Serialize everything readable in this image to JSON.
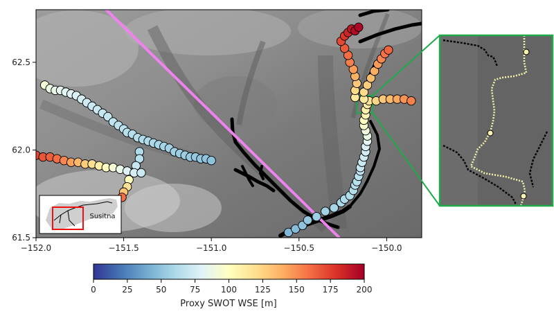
{
  "chart_data": {
    "type": "scatter",
    "title": "",
    "xlabel": "",
    "ylabel": "",
    "xlim": [
      -152.0,
      -149.8
    ],
    "ylim": [
      61.5,
      62.8
    ],
    "x_ticks": [
      -152.0,
      -151.5,
      -151.0,
      -150.5,
      -150.0
    ],
    "x_tick_labels": [
      "−152.0",
      "−151.5",
      "−151.0",
      "−150.5",
      "−150.0"
    ],
    "y_ticks": [
      61.5,
      62.0,
      62.5
    ],
    "y_tick_labels": [
      "61.5",
      "62.0",
      "62.5"
    ],
    "background": "grayscale shaded-relief elevation",
    "colormap": "RdYlBu_r",
    "colorbar": {
      "label": "Proxy SWOT WSE [m]",
      "min": 0,
      "max": 200,
      "ticks": [
        0,
        25,
        50,
        75,
        100,
        125,
        150,
        175,
        200
      ],
      "tick_labels": [
        "0",
        "25",
        "50",
        "75",
        "100",
        "125",
        "150",
        "175",
        "200"
      ],
      "stops": [
        "#313695",
        "#4575b4",
        "#74add1",
        "#abd9e9",
        "#e0f3f8",
        "#ffffbf",
        "#fee090",
        "#fdae61",
        "#f46d43",
        "#d73027",
        "#a50026"
      ]
    },
    "swath_line": {
      "color": "#ee82ee",
      "from": [
        -151.6,
        62.8
      ],
      "to": [
        -150.27,
        61.5
      ]
    },
    "highlight_box": {
      "color": "#1faa4a",
      "lon_range": [
        -150.17,
        -150.08
      ],
      "lat_range": [
        62.21,
        62.31
      ]
    },
    "inset_locator": {
      "label": "Susitna",
      "box_color": "#ee1111"
    },
    "series": [
      {
        "values": [
          [
            -150.56,
            61.53,
            45
          ],
          [
            -150.52,
            61.55,
            47
          ],
          [
            -150.48,
            61.57,
            50
          ],
          [
            -150.45,
            61.6,
            52
          ],
          [
            -150.4,
            61.62,
            55
          ],
          [
            -150.35,
            61.65,
            57
          ],
          [
            -150.3,
            61.67,
            58
          ],
          [
            -150.26,
            61.7,
            60
          ],
          [
            -150.24,
            61.72,
            61
          ],
          [
            -150.21,
            61.74,
            62
          ],
          [
            -150.19,
            61.77,
            63
          ],
          [
            -150.18,
            61.8,
            64
          ],
          [
            -150.17,
            61.82,
            65
          ],
          [
            -150.16,
            61.85,
            66
          ],
          [
            -150.15,
            61.88,
            68
          ],
          [
            -150.15,
            61.9,
            70
          ],
          [
            -150.14,
            61.93,
            72
          ],
          [
            -150.13,
            61.96,
            74
          ],
          [
            -150.12,
            61.99,
            76
          ],
          [
            -150.12,
            62.02,
            78
          ],
          [
            -150.11,
            62.05,
            82
          ],
          [
            -150.11,
            62.08,
            86
          ],
          [
            -150.12,
            62.11,
            90
          ],
          [
            -150.13,
            62.14,
            95
          ],
          [
            -150.13,
            62.17,
            100
          ],
          [
            -150.12,
            62.2,
            105
          ],
          [
            -150.12,
            62.23,
            108
          ],
          [
            -150.11,
            62.26,
            112
          ]
        ]
      },
      {
        "values": [
          [
            -150.1,
            62.28,
            118
          ],
          [
            -150.06,
            62.28,
            124
          ],
          [
            -150.02,
            62.29,
            130
          ],
          [
            -149.98,
            62.29,
            136
          ],
          [
            -149.94,
            62.29,
            142
          ],
          [
            -149.9,
            62.29,
            148
          ],
          [
            -149.86,
            62.28,
            154
          ]
        ]
      },
      {
        "values": [
          [
            -150.13,
            62.29,
            115
          ],
          [
            -150.13,
            62.33,
            122
          ],
          [
            -150.11,
            62.37,
            128
          ],
          [
            -150.09,
            62.41,
            134
          ],
          [
            -150.07,
            62.45,
            140
          ],
          [
            -150.05,
            62.49,
            146
          ],
          [
            -150.03,
            62.52,
            152
          ],
          [
            -150.01,
            62.55,
            158
          ],
          [
            -149.99,
            62.57,
            163
          ]
        ]
      },
      {
        "values": [
          [
            -150.18,
            62.3,
            114
          ],
          [
            -150.18,
            62.34,
            122
          ],
          [
            -150.17,
            62.38,
            130
          ],
          [
            -150.18,
            62.42,
            138
          ],
          [
            -150.19,
            62.46,
            146
          ],
          [
            -150.21,
            62.5,
            154
          ],
          [
            -150.22,
            62.54,
            160
          ],
          [
            -150.24,
            62.58,
            166
          ],
          [
            -150.26,
            62.62,
            172
          ],
          [
            -150.24,
            62.65,
            178
          ],
          [
            -150.22,
            62.67,
            184
          ],
          [
            -150.2,
            62.69,
            190
          ],
          [
            -150.18,
            62.68,
            194
          ],
          [
            -150.16,
            62.7,
            197
          ]
        ]
      },
      {
        "values": [
          [
            -151.95,
            62.37,
            92
          ],
          [
            -151.92,
            62.35,
            88
          ],
          [
            -151.89,
            62.34,
            86
          ],
          [
            -151.86,
            62.34,
            84
          ],
          [
            -151.83,
            62.33,
            82
          ],
          [
            -151.8,
            62.32,
            80
          ],
          [
            -151.77,
            62.31,
            78
          ],
          [
            -151.74,
            62.29,
            76
          ],
          [
            -151.71,
            62.27,
            74
          ],
          [
            -151.68,
            62.25,
            72
          ],
          [
            -151.65,
            62.23,
            71
          ],
          [
            -151.62,
            62.21,
            70
          ],
          [
            -151.59,
            62.19,
            69
          ],
          [
            -151.56,
            62.16,
            68
          ],
          [
            -151.53,
            62.14,
            67
          ],
          [
            -151.5,
            62.12,
            66
          ],
          [
            -151.48,
            62.1,
            65
          ],
          [
            -151.45,
            62.09,
            64
          ],
          [
            -151.42,
            62.07,
            63
          ],
          [
            -151.39,
            62.06,
            62
          ],
          [
            -151.36,
            62.05,
            61
          ],
          [
            -151.33,
            62.04,
            60
          ],
          [
            -151.3,
            62.03,
            59
          ],
          [
            -151.27,
            62.02,
            58
          ],
          [
            -151.24,
            62.01,
            57
          ],
          [
            -151.21,
            61.99,
            56
          ],
          [
            -151.18,
            61.98,
            55
          ],
          [
            -151.15,
            61.97,
            54
          ],
          [
            -151.12,
            61.96,
            53
          ],
          [
            -151.09,
            61.96,
            52
          ],
          [
            -151.06,
            61.95,
            51
          ],
          [
            -151.03,
            61.95,
            50
          ],
          [
            -151.0,
            61.94,
            49
          ]
        ]
      },
      {
        "values": [
          [
            -151.41,
            61.99,
            62
          ],
          [
            -151.41,
            61.95,
            65
          ],
          [
            -151.43,
            61.91,
            70
          ],
          [
            -151.45,
            61.87,
            80
          ],
          [
            -151.47,
            61.83,
            100
          ],
          [
            -151.48,
            61.79,
            118
          ],
          [
            -151.5,
            61.76,
            132
          ],
          [
            -151.51,
            61.73,
            160
          ]
        ]
      },
      {
        "values": [
          [
            -152.0,
            61.97,
            172
          ],
          [
            -151.96,
            61.96,
            168
          ],
          [
            -151.92,
            61.96,
            164
          ],
          [
            -151.88,
            61.95,
            160
          ],
          [
            -151.84,
            61.94,
            152
          ],
          [
            -151.8,
            61.93,
            144
          ],
          [
            -151.76,
            61.93,
            136
          ],
          [
            -151.72,
            61.92,
            128
          ],
          [
            -151.68,
            61.92,
            120
          ],
          [
            -151.64,
            61.91,
            110
          ],
          [
            -151.6,
            61.9,
            100
          ],
          [
            -151.56,
            61.9,
            92
          ],
          [
            -151.52,
            61.89,
            86
          ],
          [
            -151.48,
            61.88,
            80
          ],
          [
            -151.44,
            61.87,
            76
          ],
          [
            -151.4,
            61.87,
            72
          ]
        ]
      }
    ]
  }
}
